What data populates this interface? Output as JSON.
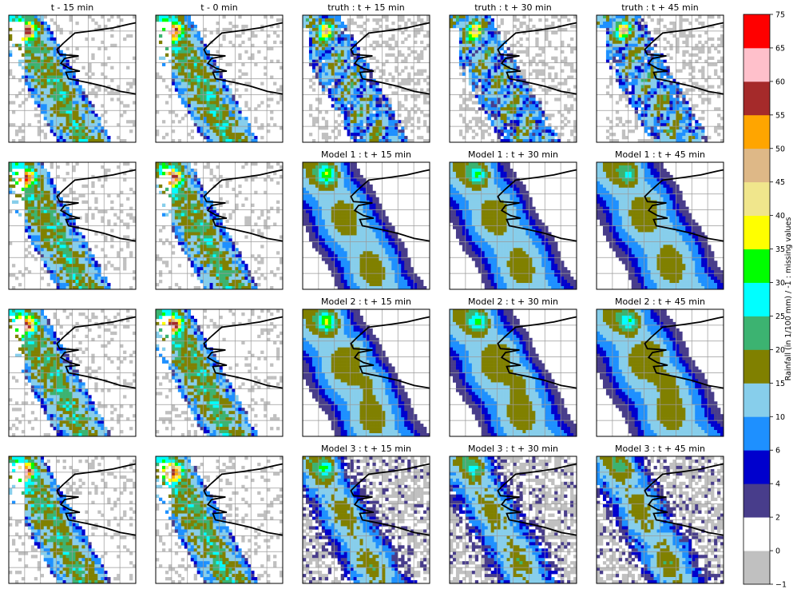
{
  "chart_data": {
    "type": "heatmap",
    "panels": [
      {
        "title": "t - 15 min",
        "source": "input"
      },
      {
        "title": "t - 0 min",
        "source": "input"
      },
      {
        "title": "truth : t + 15 min",
        "source": "truth"
      },
      {
        "title": "truth : t + 30 min",
        "source": "truth"
      },
      {
        "title": "truth : t + 45 min",
        "source": "truth"
      },
      {
        "title": "",
        "source": "input"
      },
      {
        "title": "",
        "source": "input"
      },
      {
        "title": "Model 1 : t + 15 min",
        "source": "model1"
      },
      {
        "title": "Model 1 : t + 30 min",
        "source": "model1"
      },
      {
        "title": "Model 1 : t + 45 min",
        "source": "model1"
      },
      {
        "title": "",
        "source": "input"
      },
      {
        "title": "",
        "source": "input"
      },
      {
        "title": "Model 2 : t + 15 min",
        "source": "model2"
      },
      {
        "title": "Model 2 : t + 30 min",
        "source": "model2"
      },
      {
        "title": "Model 2 : t + 45 min",
        "source": "model2"
      },
      {
        "title": "",
        "source": "input"
      },
      {
        "title": "",
        "source": "input"
      },
      {
        "title": "Model 3 : t + 15 min",
        "source": "model3"
      },
      {
        "title": "Model 3 : t + 30 min",
        "source": "model3"
      },
      {
        "title": "Model 3 : t + 45 min",
        "source": "model3"
      }
    ],
    "colorbar": {
      "label": "Rainfall (in 1/100 mm) / -1 : missing values",
      "bounds": [
        -1,
        0,
        2,
        4,
        6,
        10,
        15,
        20,
        25,
        30,
        35,
        40,
        45,
        50,
        55,
        60,
        65,
        75
      ],
      "tick_labels": [
        "−1",
        "0",
        "2",
        "4",
        "6",
        "10",
        "15",
        "20",
        "25",
        "30",
        "35",
        "40",
        "45",
        "50",
        "55",
        "60",
        "65",
        "75"
      ],
      "colors": [
        "#c0c0c0",
        "#ffffff",
        "#483d8b",
        "#0000cd",
        "#1e90ff",
        "#87ceeb",
        "#808000",
        "#3cb371",
        "#00ffff",
        "#00ff00",
        "#ffff00",
        "#f0e68c",
        "#deb887",
        "#ffa500",
        "#a52a2a",
        "#ffc0cb",
        "#ff0000",
        "#dda0dd"
      ]
    },
    "grid": true
  }
}
